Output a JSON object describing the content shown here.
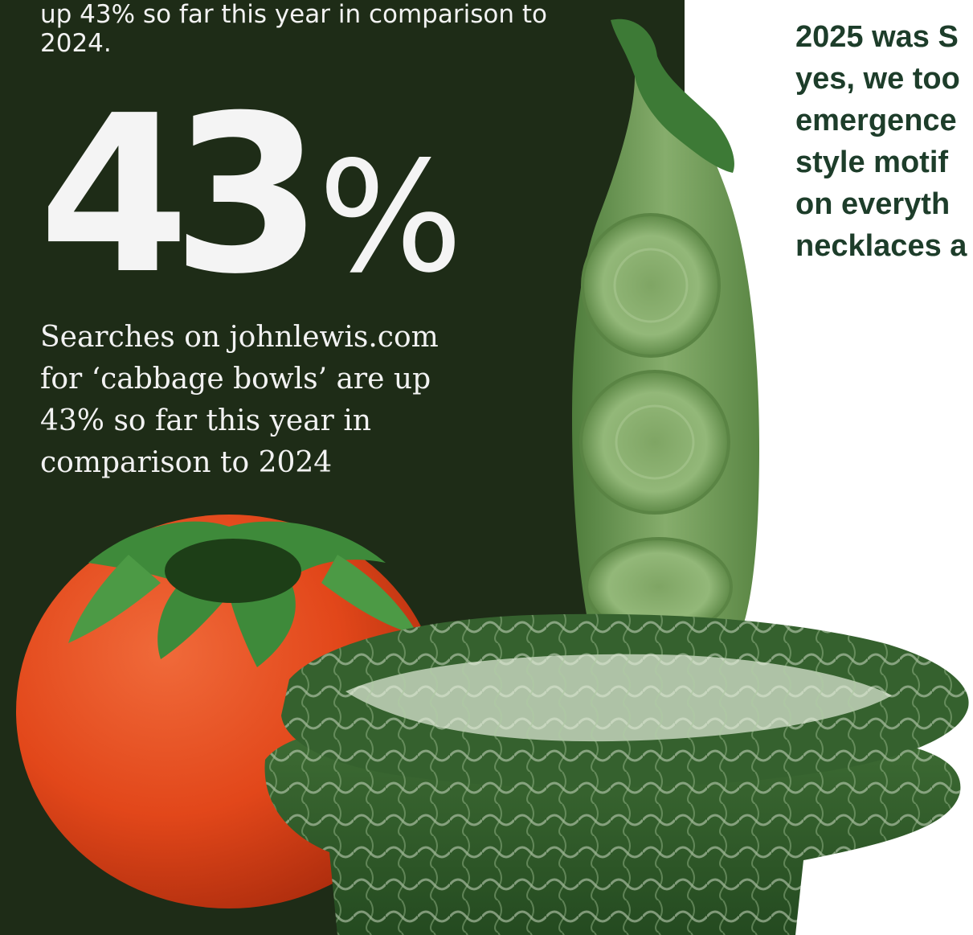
{
  "left_panel": {
    "top_caption": "up 43% so far this year in comparison to 2024.",
    "big_stat_number": "43",
    "big_stat_percent": "%",
    "serif_caption": "Searches on johnlewis.com for ‘cabbage bowls’ are up 43% so far this year in comparison to 2024"
  },
  "right_panel": {
    "lines": [
      "2025 was S",
      "yes, we too",
      "emergence",
      "style motif",
      "on everyth",
      "necklaces a"
    ]
  },
  "colors": {
    "panel_background": "#1e2c17",
    "light_text": "#f2f2f2",
    "right_text": "#1d3d2a",
    "tomato": "#e24a1a",
    "pea_green": "#6e9a58",
    "cabbage_green": "#2f5a2a"
  }
}
